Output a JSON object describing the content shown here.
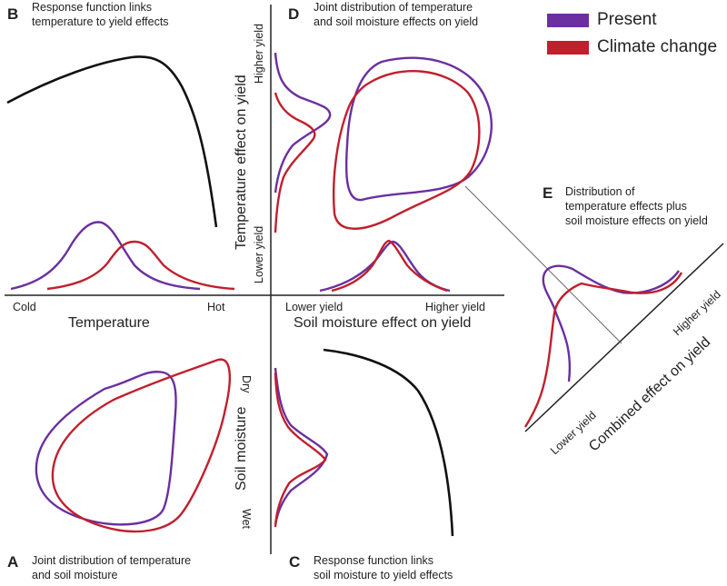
{
  "colors": {
    "present": "#6b2fa0",
    "climate": "#c0202c",
    "response": "#111111",
    "axis": "#222222"
  },
  "legend": [
    {
      "label": "Present",
      "color": "#6b2fa0"
    },
    {
      "label": "Climate change",
      "color": "#c0202c"
    }
  ],
  "panels": {
    "A": {
      "letter": "A",
      "caption_line1": "Joint distribution of temperature",
      "caption_line2": "and soil moisture"
    },
    "B": {
      "letter": "B",
      "caption_line1": "Response function links",
      "caption_line2": "temperature to yield effects"
    },
    "C": {
      "letter": "C",
      "caption_line1": "Response function links",
      "caption_line2": "soil moisture to yield effects"
    },
    "D": {
      "letter": "D",
      "caption_line1": "Joint distribution of temperature",
      "caption_line2": "and soil moisture effects on yield"
    },
    "E": {
      "letter": "E",
      "caption_line1": "Distribution of",
      "caption_line2": "temperature effects plus",
      "caption_line3": "soil moisture effects on yield"
    }
  },
  "axes": {
    "temperature": {
      "title": "Temperature",
      "low": "Cold",
      "high": "Hot"
    },
    "soil_moisture": {
      "title": "Soil moisture",
      "low": "Dry",
      "high": "Wet"
    },
    "temp_effect": {
      "title": "Temperature effect on yield",
      "low": "Lower yield",
      "high": "Higher yield"
    },
    "soil_effect": {
      "title": "Soil moisture effect on yield",
      "low": "Lower yield",
      "high": "Higher yield"
    },
    "combined": {
      "title": "Combined effect on yield",
      "low": "Lower yield",
      "high": "Higher yield"
    }
  }
}
